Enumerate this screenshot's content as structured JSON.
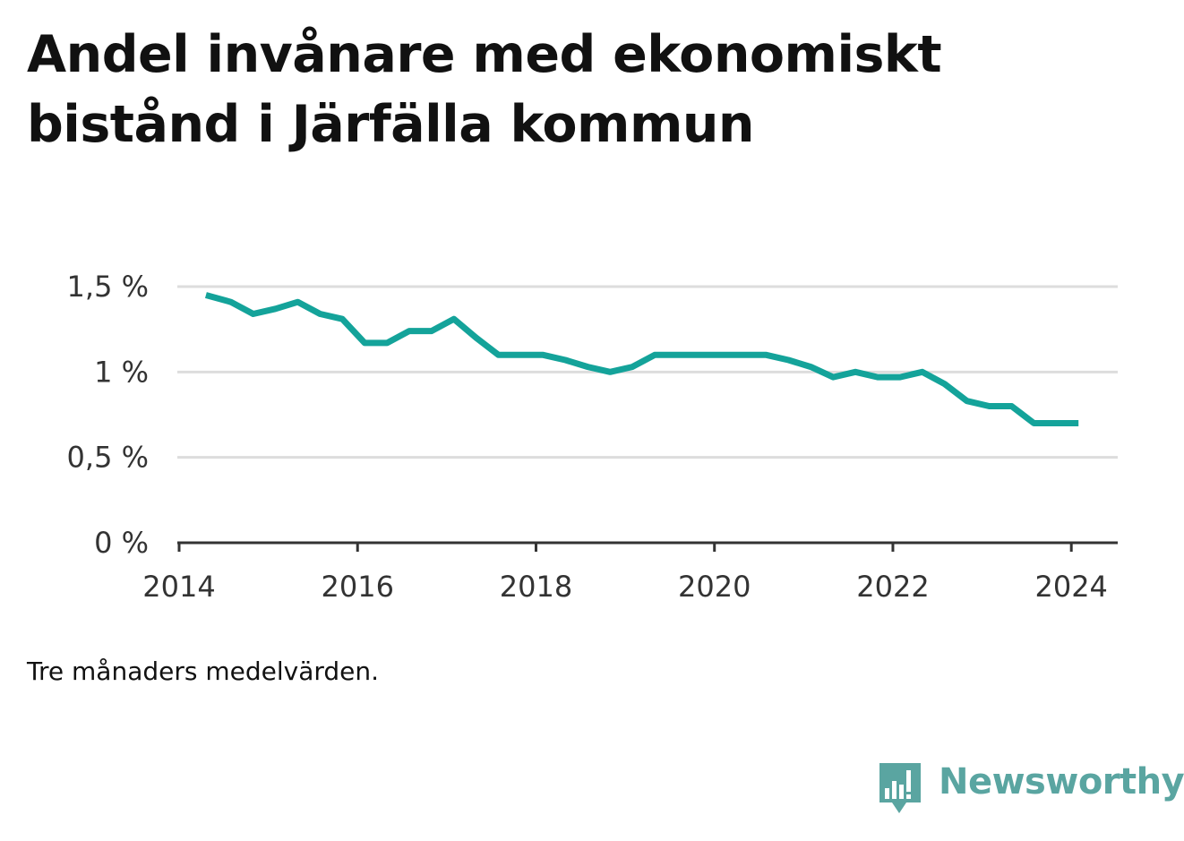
{
  "title": "Andel invånare med ekonomiskt bistånd i Järfälla kommun",
  "note": "Tre månaders medelvärden.",
  "brand": {
    "name": "Newsworthy",
    "icon": "newsworthy-logo-icon",
    "color": "#5aa5a1"
  },
  "colors": {
    "line": "#14a39a",
    "grid": "#dddddd",
    "axis": "#333333",
    "text": "#111111"
  },
  "chart_data": {
    "type": "line",
    "title": "Andel invånare med ekonomiskt bistånd i Järfälla kommun",
    "xlabel": "",
    "ylabel": "",
    "xlim": [
      2013.98,
      2024.52
    ],
    "ylim": [
      0,
      1.5
    ],
    "yticks": [
      {
        "value": 0,
        "label": "0 %"
      },
      {
        "value": 0.5,
        "label": "0,5 %"
      },
      {
        "value": 1,
        "label": "1 %"
      },
      {
        "value": 1.5,
        "label": "1,5 %"
      }
    ],
    "xticks": [
      {
        "value": 2014,
        "label": "2014"
      },
      {
        "value": 2016,
        "label": "2016"
      },
      {
        "value": 2018,
        "label": "2018"
      },
      {
        "value": 2020,
        "label": "2020"
      },
      {
        "value": 2022,
        "label": "2022"
      },
      {
        "value": 2024,
        "label": "2024"
      }
    ],
    "grid": true,
    "legend": "none",
    "series": [
      {
        "x": [
          2014.3,
          2014.58,
          2014.83,
          2015.08,
          2015.33,
          2015.58,
          2015.83,
          2016.08,
          2016.33,
          2016.58,
          2016.83,
          2017.08,
          2017.33,
          2017.58,
          2017.83,
          2018.08,
          2018.33,
          2018.58,
          2018.83,
          2019.08,
          2019.33,
          2019.58,
          2019.83,
          2020.08,
          2020.33,
          2020.58,
          2020.83,
          2021.08,
          2021.33,
          2021.58,
          2021.83,
          2022.08,
          2022.33,
          2022.58,
          2022.83,
          2023.08,
          2023.33,
          2023.58,
          2023.83,
          2024.08
        ],
        "values": [
          1.45,
          1.41,
          1.34,
          1.37,
          1.41,
          1.34,
          1.31,
          1.17,
          1.17,
          1.24,
          1.24,
          1.31,
          1.2,
          1.1,
          1.1,
          1.1,
          1.07,
          1.03,
          1.0,
          1.03,
          1.1,
          1.1,
          1.1,
          1.1,
          1.1,
          1.1,
          1.07,
          1.03,
          0.97,
          1.0,
          0.97,
          0.97,
          1.0,
          0.93,
          0.83,
          0.8,
          0.8,
          0.7,
          0.7,
          0.7
        ]
      }
    ]
  }
}
